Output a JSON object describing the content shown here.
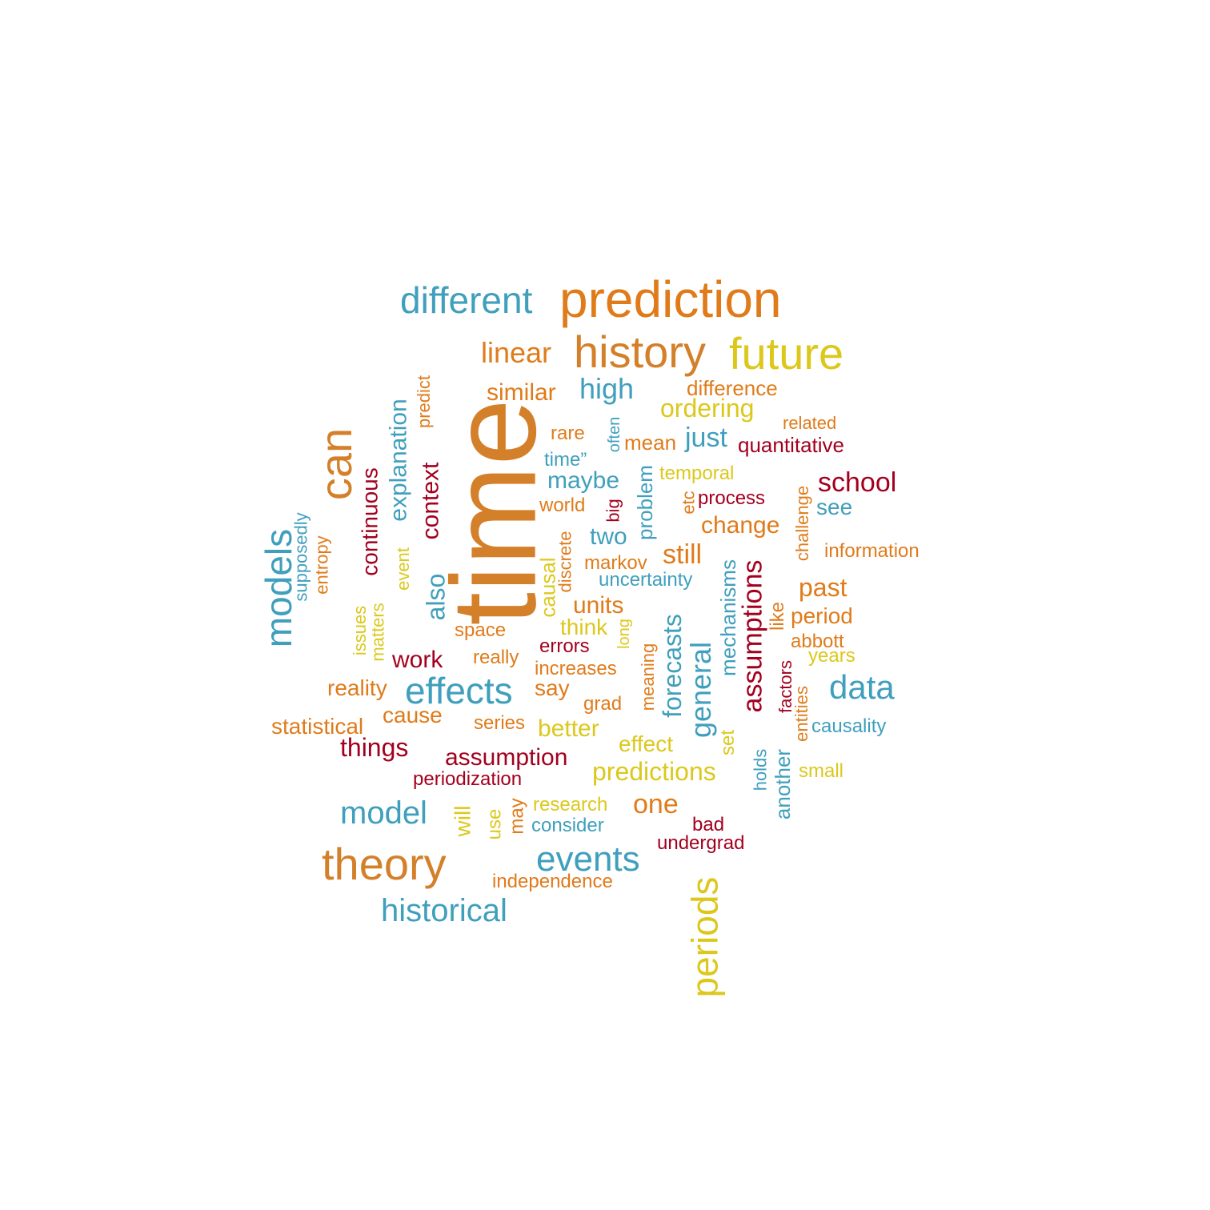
{
  "palette": {
    "blue": "#3f9fbd",
    "orange": "#e07b1a",
    "ochre": "#d4802a",
    "yellow": "#dcc81c",
    "red": "#a3001e"
  },
  "words": [
    {
      "text": "time",
      "color": "ochre"
    },
    {
      "text": "prediction",
      "color": "orange"
    },
    {
      "text": "history",
      "color": "ochre"
    },
    {
      "text": "future",
      "color": "yellow"
    },
    {
      "text": "theory",
      "color": "ochre"
    },
    {
      "text": "can",
      "color": "ochre"
    },
    {
      "text": "different",
      "color": "blue"
    },
    {
      "text": "periods",
      "color": "yellow"
    },
    {
      "text": "effects",
      "color": "blue"
    },
    {
      "text": "models",
      "color": "blue"
    },
    {
      "text": "historical",
      "color": "blue"
    },
    {
      "text": "events",
      "color": "blue"
    },
    {
      "text": "data",
      "color": "blue"
    },
    {
      "text": "model",
      "color": "blue"
    },
    {
      "text": "assumptions",
      "color": "red"
    },
    {
      "text": "linear",
      "color": "orange"
    },
    {
      "text": "high",
      "color": "blue"
    },
    {
      "text": "general",
      "color": "blue"
    },
    {
      "text": "forecasts",
      "color": "blue"
    },
    {
      "text": "school",
      "color": "red"
    },
    {
      "text": "explanation",
      "color": "blue"
    },
    {
      "text": "context",
      "color": "red"
    },
    {
      "text": "continuous",
      "color": "red"
    },
    {
      "text": "also",
      "color": "blue"
    },
    {
      "text": "just",
      "color": "blue"
    },
    {
      "text": "ordering",
      "color": "yellow"
    },
    {
      "text": "predictions",
      "color": "yellow"
    },
    {
      "text": "past",
      "color": "orange"
    },
    {
      "text": "still",
      "color": "orange"
    },
    {
      "text": "one",
      "color": "orange"
    },
    {
      "text": "similar",
      "color": "orange"
    },
    {
      "text": "maybe",
      "color": "blue"
    },
    {
      "text": "change",
      "color": "orange"
    },
    {
      "text": "units",
      "color": "orange"
    },
    {
      "text": "two",
      "color": "blue"
    },
    {
      "text": "work",
      "color": "red"
    },
    {
      "text": "things",
      "color": "red"
    },
    {
      "text": "assumption",
      "color": "red"
    },
    {
      "text": "better",
      "color": "yellow"
    },
    {
      "text": "mechanisms",
      "color": "blue"
    },
    {
      "text": "period",
      "color": "orange"
    },
    {
      "text": "reality",
      "color": "orange"
    },
    {
      "text": "statistical",
      "color": "orange"
    },
    {
      "text": "cause",
      "color": "orange"
    },
    {
      "text": "say",
      "color": "orange"
    },
    {
      "text": "think",
      "color": "yellow"
    },
    {
      "text": "problem",
      "color": "blue"
    },
    {
      "text": "causal",
      "color": "yellow"
    },
    {
      "text": "will",
      "color": "yellow"
    },
    {
      "text": "another",
      "color": "blue"
    },
    {
      "text": "see",
      "color": "blue"
    },
    {
      "text": "information",
      "color": "orange"
    },
    {
      "text": "quantitative",
      "color": "red"
    },
    {
      "text": "difference",
      "color": "orange"
    },
    {
      "text": "effect",
      "color": "yellow"
    },
    {
      "text": "causality",
      "color": "blue"
    },
    {
      "text": "mean",
      "color": "orange"
    },
    {
      "text": "process",
      "color": "red"
    },
    {
      "text": "temporal",
      "color": "yellow"
    },
    {
      "text": "uncertainty",
      "color": "blue"
    },
    {
      "text": "markov",
      "color": "orange"
    },
    {
      "text": "space",
      "color": "orange"
    },
    {
      "text": "really",
      "color": "orange"
    },
    {
      "text": "errors",
      "color": "red"
    },
    {
      "text": "increases",
      "color": "orange"
    },
    {
      "text": "grad",
      "color": "orange"
    },
    {
      "text": "series",
      "color": "orange"
    },
    {
      "text": "periodization",
      "color": "red"
    },
    {
      "text": "research",
      "color": "yellow"
    },
    {
      "text": "consider",
      "color": "blue"
    },
    {
      "text": "bad",
      "color": "red"
    },
    {
      "text": "undergrad",
      "color": "red"
    },
    {
      "text": "independence",
      "color": "orange"
    },
    {
      "text": "rare",
      "color": "orange"
    },
    {
      "text": "time”",
      "color": "blue"
    },
    {
      "text": "world",
      "color": "orange"
    },
    {
      "text": "abbott",
      "color": "orange"
    },
    {
      "text": "years",
      "color": "yellow"
    },
    {
      "text": "small",
      "color": "yellow"
    },
    {
      "text": "related",
      "color": "orange"
    },
    {
      "text": "like",
      "color": "orange"
    },
    {
      "text": "challenge",
      "color": "orange"
    },
    {
      "text": "factors",
      "color": "red"
    },
    {
      "text": "entities",
      "color": "orange"
    },
    {
      "text": "holds",
      "color": "blue"
    },
    {
      "text": "set",
      "color": "yellow"
    },
    {
      "text": "meaning",
      "color": "orange"
    },
    {
      "text": "long",
      "color": "yellow"
    },
    {
      "text": "discrete",
      "color": "orange"
    },
    {
      "text": "big",
      "color": "red"
    },
    {
      "text": "often",
      "color": "blue"
    },
    {
      "text": "etc",
      "color": "orange"
    },
    {
      "text": "predict",
      "color": "orange"
    },
    {
      "text": "event",
      "color": "yellow"
    },
    {
      "text": "issues",
      "color": "yellow"
    },
    {
      "text": "matters",
      "color": "yellow"
    },
    {
      "text": "supposedly",
      "color": "blue"
    },
    {
      "text": "entropy",
      "color": "orange"
    },
    {
      "text": "use",
      "color": "yellow"
    },
    {
      "text": "may",
      "color": "orange"
    }
  ]
}
